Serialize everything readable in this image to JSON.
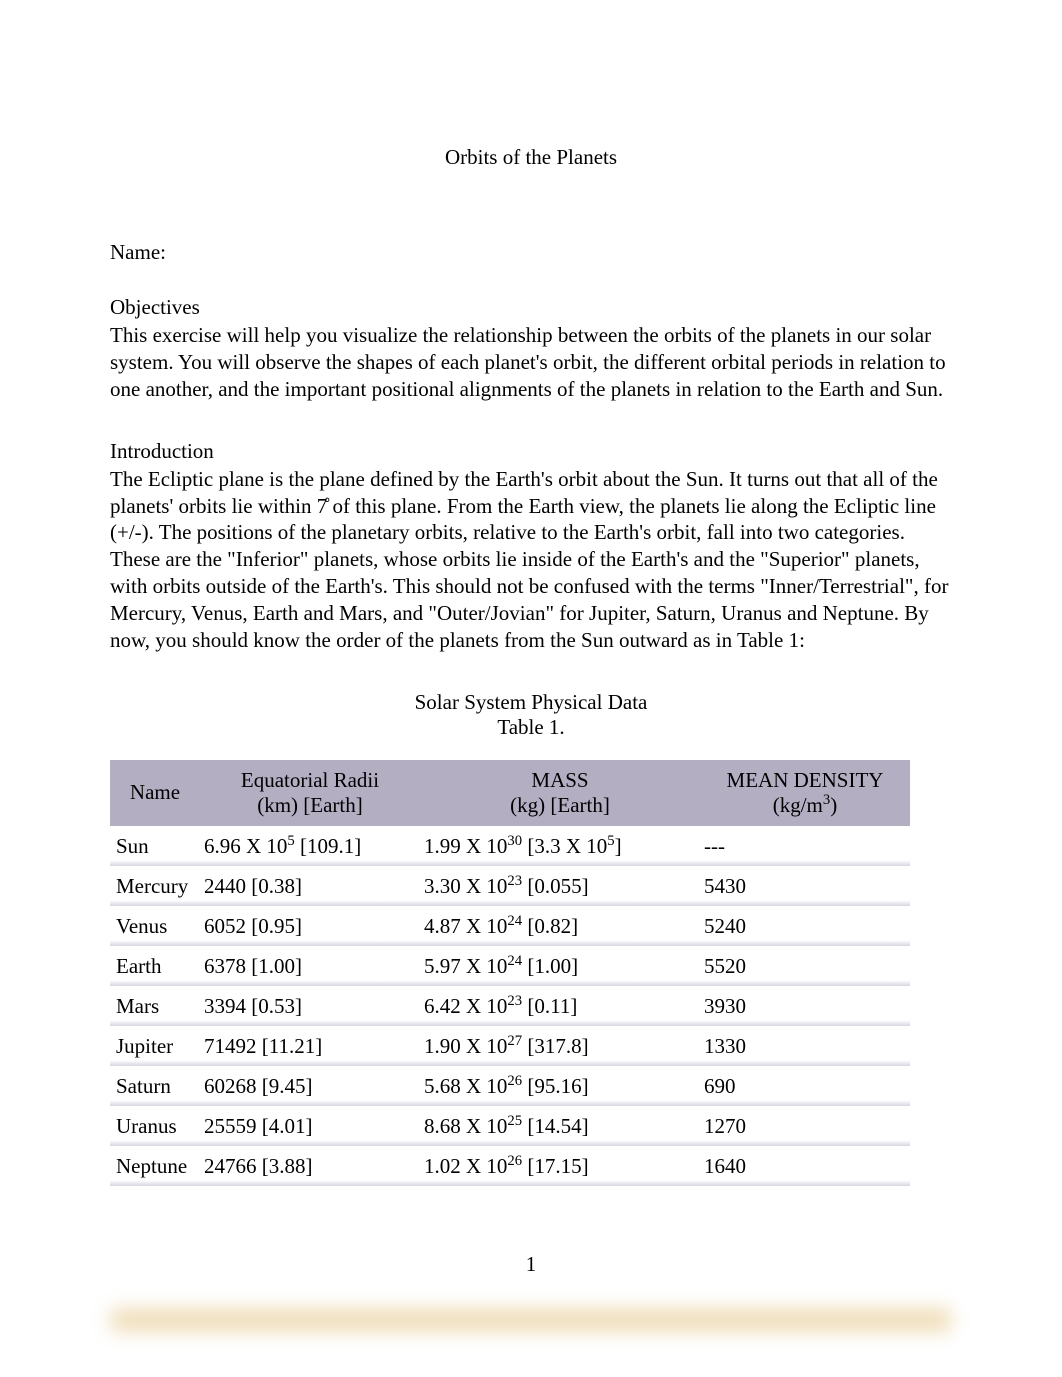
{
  "title": "Orbits of the Planets",
  "name_label": "Name:",
  "objectives": {
    "heading": "Objectives",
    "text": "This exercise will help you visualize the relationship between the orbits of the planets in our solar system. You will observe the shapes of each planet's orbit, the different orbital periods in relation to one another, and the important positional alignments of the planets in relation to the Earth and Sun."
  },
  "introduction": {
    "heading": "Introduction",
    "text": "The Ecliptic plane is the plane defined by the Earth's orbit about the Sun. It turns out that all of the planets' orbits lie within 7̊ of this plane. From the Earth view, the planets lie along the Ecliptic line (+/-). The positions of the planetary orbits, relative to the Earth's orbit, fall into two categories. These are the \"Inferior\"   planets, whose orbits lie inside of the Earth's and the \"Superior\"   planets, with orbits outside of the Earth's. This should not be confused with the terms \"Inner/Terrestrial\", for Mercury, Venus, Earth and Mars, and \"Outer/Jovian\" for Jupiter, Saturn, Uranus and Neptune. By now, you should know the order of the planets from the Sun outward as in Table 1:"
  },
  "table": {
    "title": "Solar System Physical Data",
    "caption": "Table 1.",
    "header_bg": "#b4aec3",
    "row_shadow": "#d8d4df",
    "columns": {
      "name": "Name",
      "radii_line1": "Equatorial Radii",
      "radii_line2": "(km) [Earth]",
      "mass_line1": "MASS",
      "mass_line2": "(kg) [Earth]",
      "density_line1": "MEAN DENSITY",
      "density_line2_prefix": "(kg/m",
      "density_line2_sup": "3",
      "density_line2_suffix": ")"
    },
    "rows": [
      {
        "name": "Sun",
        "radii_prefix": "6.96 X 10",
        "radii_sup": "5",
        "radii_suffix": " [109.1]",
        "mass_prefix": "1.99 X 10",
        "mass_sup": "30",
        "mass_mid": " [3.3 X 10",
        "mass_sup2": "5",
        "mass_suffix": "]",
        "density": "---"
      },
      {
        "name": "Mercury",
        "radii_plain": "2440 [0.38]",
        "mass_prefix": "3.30 X 10",
        "mass_sup": "23",
        "mass_suffix": " [0.055]",
        "density": "5430"
      },
      {
        "name": "Venus",
        "radii_plain": "6052 [0.95]",
        "mass_prefix": "4.87 X 10",
        "mass_sup": "24",
        "mass_suffix": " [0.82]",
        "density": "5240"
      },
      {
        "name": "Earth",
        "radii_plain": "6378 [1.00]",
        "mass_prefix": "5.97 X 10",
        "mass_sup": "24",
        "mass_suffix": " [1.00]",
        "density": "5520"
      },
      {
        "name": "Mars",
        "radii_plain": "3394 [0.53]",
        "mass_prefix": "6.42 X 10",
        "mass_sup": "23",
        "mass_suffix": " [0.11]",
        "density": "3930"
      },
      {
        "name": "Jupiter",
        "radii_plain": "71492 [11.21]",
        "mass_prefix": "1.90 X 10",
        "mass_sup": "27",
        "mass_suffix": " [317.8]",
        "density": "1330"
      },
      {
        "name": "Saturn",
        "radii_plain": "60268 [9.45]",
        "mass_prefix": "5.68 X 10",
        "mass_sup": "26",
        "mass_suffix": " [95.16]",
        "density": "690"
      },
      {
        "name": "Uranus",
        "radii_plain": "25559 [4.01]",
        "mass_prefix": "8.68 X 10",
        "mass_sup": "25",
        "mass_suffix": " [14.54]",
        "density": "1270"
      },
      {
        "name": "Neptune",
        "radii_plain": "24766 [3.88]",
        "mass_prefix": "1.02 X 10",
        "mass_sup": "26",
        "mass_suffix": " [17.15]",
        "density": "1640"
      }
    ]
  },
  "page_number": "1"
}
